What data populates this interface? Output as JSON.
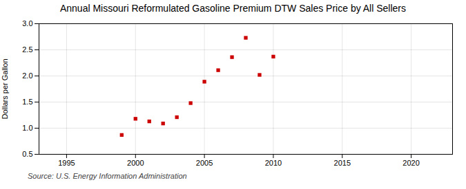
{
  "chart_data": {
    "type": "scatter",
    "title": "Annual Missouri Reformulated Gasoline Premium DTW Sales Price by All Sellers",
    "ylabel": "Dollars per Gallon",
    "annotations": [
      "Source: U.S. Energy Information Administration"
    ],
    "x": [
      1999,
      2000,
      2001,
      2002,
      2003,
      2004,
      2005,
      2006,
      2007,
      2008,
      2009,
      2010
    ],
    "values": [
      0.87,
      1.18,
      1.13,
      1.09,
      1.21,
      1.48,
      1.89,
      2.11,
      2.36,
      2.73,
      2.02,
      2.37
    ],
    "color": "#cc0000",
    "marker": "square",
    "xlim": [
      1993,
      2023
    ],
    "ylim": [
      0.5,
      3.0
    ],
    "xticks": [
      1995,
      2000,
      2005,
      2010,
      2015,
      2020
    ],
    "yticks": [
      0.5,
      {
        "value": 1,
        "label": "1.0"
      },
      1.5,
      {
        "value": 2,
        "label": "2.0"
      },
      2.5,
      {
        "value": 3,
        "label": "3.0"
      }
    ],
    "grid": true
  }
}
